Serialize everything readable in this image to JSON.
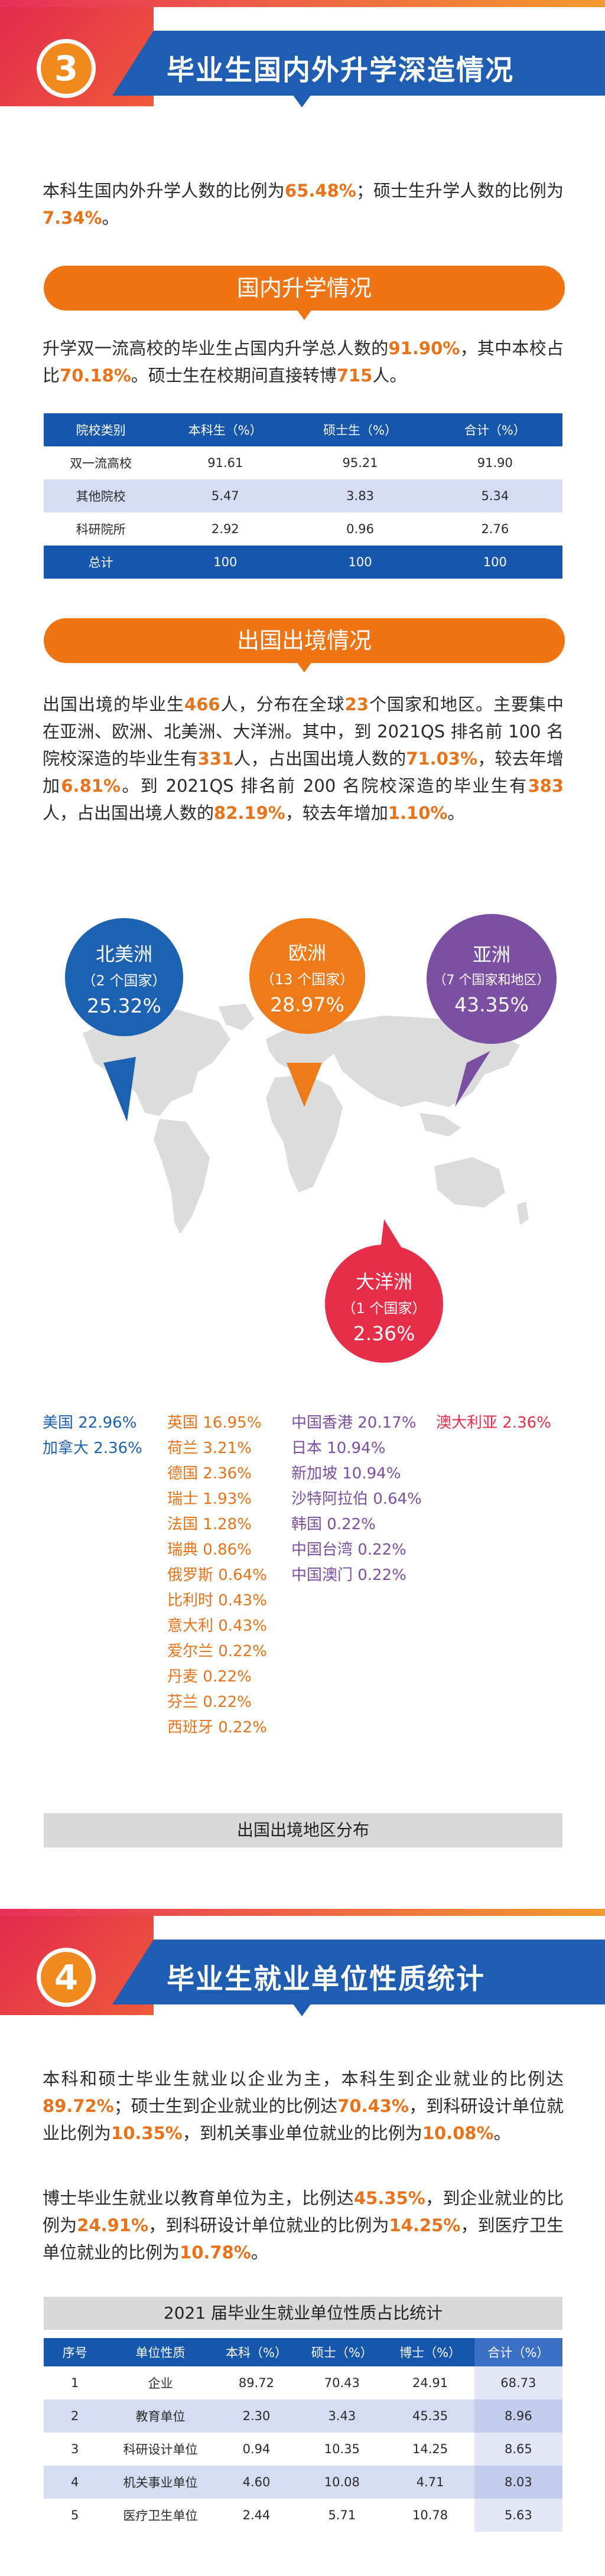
{
  "section3": {
    "number": "3",
    "title": "毕业生国内外升学深造情况",
    "intro": {
      "p1": "本科生国内外升学人数的比例为",
      "v1": "65.48%",
      "p2": "；硕士生升学人数的比例为",
      "v2": "7.34%",
      "p3": "。"
    },
    "domestic": {
      "heading": "国内升学情况",
      "t1": "升学双一流高校的毕业生占国内升学总人数的",
      "v1": "91.90%",
      "t2": "，其中本校占比",
      "v2": "70.18%",
      "t3": "。硕士生在校期间直接转博",
      "v3": "715",
      "t4": "人。",
      "table": {
        "headers": [
          "院校类别",
          "本科生（%）",
          "硕士生（%）",
          "合计（%）"
        ],
        "rows": [
          [
            "双一流高校",
            "91.61",
            "95.21",
            "91.90"
          ],
          [
            "其他院校",
            "5.47",
            "3.83",
            "5.34"
          ],
          [
            "科研院所",
            "2.92",
            "0.96",
            "2.76"
          ],
          [
            "总计",
            "100",
            "100",
            "100"
          ]
        ]
      }
    },
    "abroad": {
      "heading": "出国出境情况",
      "t1": "出国出境的毕业生",
      "v1": "466",
      "t2": "人，分布在全球",
      "v2": "23",
      "t3": "个国家和地区。主要集中在亚洲、欧洲、北美洲、大洋洲。其中，到 2021QS 排名前 100 名院校深造的毕业生有",
      "v3": "331",
      "t4": "人，占出国出境人数的",
      "v4": "71.03%",
      "t5": "，较去年增加",
      "v5": "6.81%",
      "t6": "。到 2021QS 排名前 200 名院校深造的毕业生有",
      "v6": "383",
      "t7": "人，占出国出境人数的",
      "v7": "82.19%",
      "t8": "，较去年增加",
      "v8": "1.10%",
      "t9": "。",
      "bubbles": [
        {
          "name": "北美洲",
          "sub": "（2 个国家）",
          "pct": "25.32%",
          "color": "#1d61b3"
        },
        {
          "name": "欧洲",
          "sub": "（13 个国家）",
          "pct": "28.97%",
          "color": "#ee7a1a"
        },
        {
          "name": "亚洲",
          "sub": "（7 个国家和地区）",
          "pct": "43.35%",
          "color": "#7b4fa2"
        },
        {
          "name": "大洋洲",
          "sub": "（1 个国家）",
          "pct": "2.36%",
          "color": "#e62e48"
        }
      ],
      "countries": {
        "north_america": [
          "美国 22.96%",
          "加拿大 2.36%"
        ],
        "europe": [
          "英国 16.95%",
          "荷兰 3.21%",
          "德国 2.36%",
          "瑞士 1.93%",
          "法国 1.28%",
          "瑞典 0.86%",
          "俄罗斯 0.64%",
          "比利时 0.43%",
          "意大利 0.43%",
          "爱尔兰 0.22%",
          "丹麦 0.22%",
          "芬兰 0.22%",
          "西班牙 0.22%"
        ],
        "asia": [
          "中国香港 20.17%",
          "日本 10.94%",
          "新加坡 10.94%",
          "沙特阿拉伯 0.64%",
          "韩国 0.22%",
          "中国台湾 0.22%",
          "中国澳门 0.22%"
        ],
        "oceania": [
          "澳大利亚 2.36%"
        ]
      },
      "caption": "出国出境地区分布"
    }
  },
  "section4": {
    "number": "4",
    "title": "毕业生就业单位性质统计",
    "p1": {
      "t1": "本科和硕士毕业生就业以企业为主，本科生到企业就业的比例达",
      "v1": "89.72%",
      "t2": "；硕士生到企业就业的比例达",
      "v2": "70.43%",
      "t3": "，到科研设计单位就业比例为",
      "v3": "10.35%",
      "t4": "，到机关事业单位就业的比例为",
      "v4": "10.08%",
      "t5": "。"
    },
    "p2": {
      "t1": "博士毕业生就业以教育单位为主，比例达",
      "v1": "45.35%",
      "t2": "，到企业就业的比例为",
      "v2": "24.91%",
      "t3": "，到科研设计单位就业的比例为",
      "v3": "14.25%",
      "t4": "，到医疗卫生单位就业的比例为",
      "v4": "10.78%",
      "t5": "。"
    },
    "table_title": "2021 届毕业生就业单位性质占比统计",
    "table": {
      "headers": [
        "序号",
        "单位性质",
        "本科（%）",
        "硕士（%）",
        "博士（%）",
        "合计（%）"
      ],
      "rows": [
        [
          "1",
          "企业",
          "89.72",
          "70.43",
          "24.91",
          "68.73"
        ],
        [
          "2",
          "教育单位",
          "2.30",
          "3.43",
          "45.35",
          "8.96"
        ],
        [
          "3",
          "科研设计单位",
          "0.94",
          "10.35",
          "14.25",
          "8.65"
        ],
        [
          "4",
          "机关事业单位",
          "4.60",
          "10.08",
          "4.71",
          "8.03"
        ],
        [
          "5",
          "医疗卫生单位",
          "2.44",
          "5.71",
          "10.78",
          "5.63"
        ]
      ]
    }
  }
}
